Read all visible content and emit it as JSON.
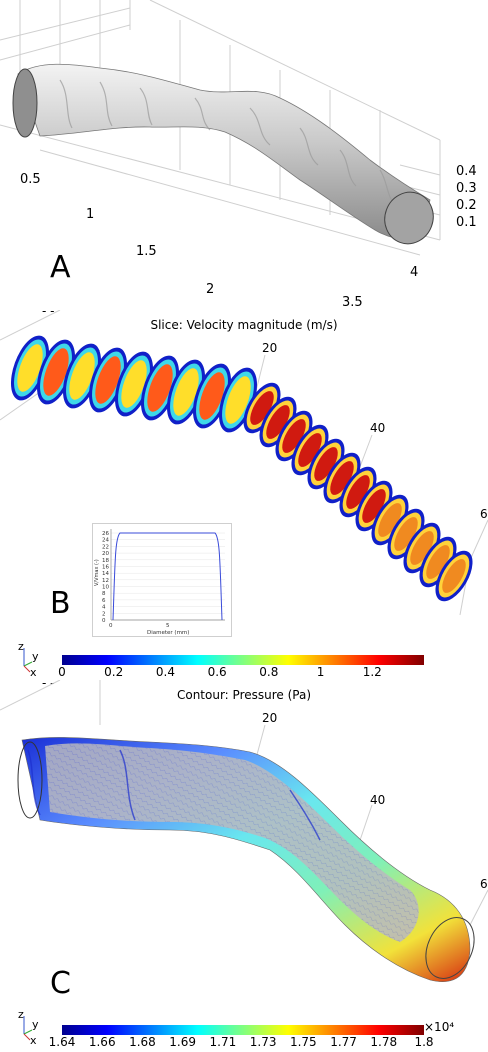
{
  "panelA": {
    "letter": "A",
    "axisTicks": {
      "left": [
        "0.5",
        "1",
        "1.5",
        "2"
      ],
      "right": [
        "0.4",
        "0.3",
        "0.2",
        "0.1"
      ],
      "bottom": [
        "4",
        "3.5"
      ]
    }
  },
  "panelB": {
    "letter": "B",
    "title": "Slice: Velocity magnitude (m/s)",
    "pathTicks": [
      "20",
      "40",
      "6"
    ],
    "topCut": "- -",
    "inset": {
      "ylabel": "V/Vmax (-)",
      "xlabel": "Diameter (mm)",
      "yticks": [
        "26",
        "24",
        "22",
        "20",
        "18",
        "16",
        "14",
        "12",
        "10",
        "8",
        "6",
        "4",
        "2",
        "0"
      ],
      "xticks": [
        "0",
        "5"
      ]
    },
    "colorbar": {
      "ticks": [
        "0",
        "0.2",
        "0.4",
        "0.6",
        "0.8",
        "1",
        "1.2"
      ],
      "colors": [
        "#00008f",
        "#0000ff",
        "#0080ff",
        "#00ffff",
        "#80ff80",
        "#ffff00",
        "#ff8000",
        "#ff0000",
        "#800000"
      ]
    }
  },
  "panelC": {
    "letter": "C",
    "title": "Contour: Pressure (Pa)",
    "pathTicks": [
      "20",
      "40",
      "6"
    ],
    "topCut": "- -",
    "colorbar": {
      "ticks": [
        "1.64",
        "1.66",
        "1.68",
        "1.69",
        "1.71",
        "1.73",
        "1.75",
        "1.77",
        "1.78",
        "1.8"
      ],
      "exponent": "×10⁴",
      "colors": [
        "#00008f",
        "#0000ff",
        "#0080ff",
        "#00ffff",
        "#80ff80",
        "#ffff00",
        "#ff8000",
        "#ff0000",
        "#800000"
      ]
    }
  },
  "axesTriad": {
    "z": "z",
    "y": "y",
    "x": "x"
  }
}
